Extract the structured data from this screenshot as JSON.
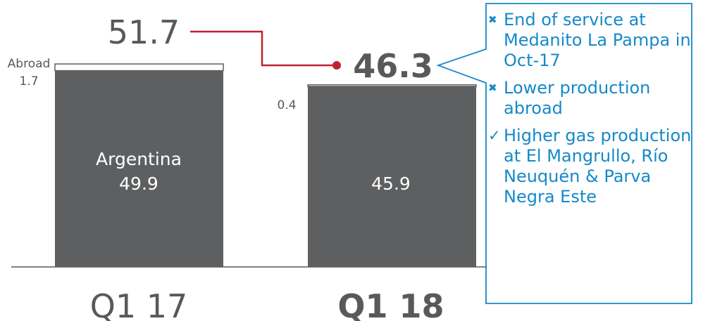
{
  "chart_data": {
    "type": "bar",
    "stacked": true,
    "categories": [
      "Q1 17",
      "Q1 18"
    ],
    "series": [
      {
        "name": "Argentina",
        "values": [
          49.9,
          45.9
        ],
        "color": "#5e5f61"
      },
      {
        "name": "Abroad",
        "values": [
          1.7,
          0.4
        ],
        "color": "#ffffff"
      }
    ],
    "totals": [
      "51.7",
      "46.3"
    ],
    "data_labels": {
      "abroad_q117": "1.7",
      "abroad_q118": "0.4",
      "argentina_q117": "49.9",
      "argentina_q118": "45.9"
    },
    "segment_titles": {
      "abroad_q117": "Abroad",
      "argentina_q117": "Argentina"
    },
    "title": "",
    "xlabel": "",
    "ylabel": "",
    "ylim": [
      0,
      60
    ],
    "grid": false,
    "colors": {
      "bar": "#5e5f61",
      "connector": "#c0212e",
      "callout": "#1589c8",
      "text": "#595959"
    }
  },
  "callout": {
    "items": [
      {
        "icon": "x-mark-icon",
        "text": "End of service at Medanito La Pampa in Oct-17"
      },
      {
        "icon": "x-mark-icon",
        "text": "Lower production abroad"
      },
      {
        "icon": "check-mark-icon",
        "text": "Higher gas production at El Mangrullo, Río Neuquén & Parva Negra Este"
      }
    ]
  }
}
